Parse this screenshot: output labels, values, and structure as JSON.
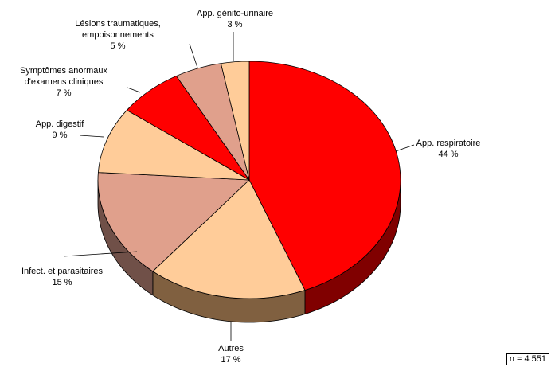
{
  "chart_data": {
    "type": "pie",
    "categories": [
      "App. respiratoire",
      "Autres",
      "Infect. et parasitaires",
      "App. digestif",
      "Symptômes anormaux\nd'examens cliniques",
      "Lésions traumatiques,\nempoisonnements",
      "App. génito-urinaire"
    ],
    "values": [
      44,
      17,
      15,
      9,
      7,
      5,
      3
    ],
    "value_labels": [
      "44 %",
      "17 %",
      "15 %",
      "9 %",
      "7 %",
      "5 %",
      "3 %"
    ],
    "colors": [
      "#ff0000",
      "#ffcc99",
      "#e0a08c",
      "#ffcc99",
      "#ff0000",
      "#e0a08c",
      "#ffcc99"
    ],
    "side_colors": [
      "#800000",
      "#806040",
      "#705048",
      "#806040",
      "#800000",
      "#705048",
      "#806040"
    ],
    "annotation": "n = 4 551"
  }
}
